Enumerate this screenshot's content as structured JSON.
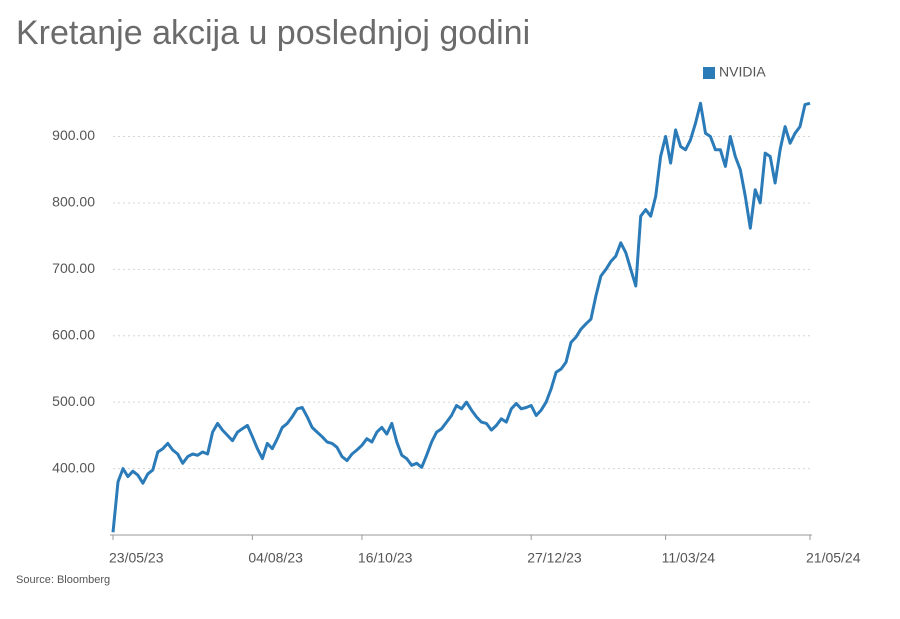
{
  "chart_data": {
    "type": "line",
    "title": "Kretanje akcija u poslednjoj godini",
    "source": "Source: Bloomberg",
    "categories": [
      "23/05/23",
      null,
      null,
      null,
      null,
      null,
      null,
      null,
      null,
      null,
      null,
      null,
      null,
      null,
      null,
      null,
      null,
      null,
      null,
      null,
      null,
      null,
      null,
      null,
      null,
      null,
      null,
      null,
      "04/08/23",
      null,
      null,
      null,
      null,
      null,
      null,
      null,
      null,
      null,
      null,
      null,
      null,
      null,
      null,
      null,
      null,
      null,
      null,
      null,
      null,
      null,
      "16/10/23",
      null,
      null,
      null,
      null,
      null,
      null,
      null,
      null,
      null,
      null,
      null,
      null,
      null,
      null,
      null,
      null,
      null,
      null,
      null,
      null,
      null,
      null,
      null,
      null,
      null,
      null,
      null,
      null,
      null,
      null,
      null,
      null,
      null,
      "27/12/23",
      null,
      null,
      null,
      null,
      null,
      null,
      null,
      null,
      null,
      null,
      null,
      null,
      null,
      null,
      null,
      null,
      null,
      null,
      null,
      null,
      null,
      null,
      null,
      null,
      null,
      null,
      "11/03/24",
      null,
      null,
      null,
      null,
      null,
      null,
      null,
      null,
      null,
      null,
      null,
      null,
      null,
      null,
      null,
      null,
      null,
      null,
      null,
      null,
      null,
      null,
      null,
      null,
      null,
      null,
      null,
      null,
      "21/05/24"
    ],
    "series": [
      {
        "name": "NVIDIA",
        "color": "#2b7bb9",
        "values": [
          304,
          380,
          400,
          388,
          396,
          390,
          378,
          392,
          398,
          425,
          430,
          438,
          428,
          422,
          408,
          418,
          422,
          420,
          425,
          422,
          455,
          468,
          458,
          450,
          442,
          455,
          460,
          465,
          448,
          430,
          415,
          438,
          430,
          445,
          462,
          468,
          478,
          490,
          492,
          478,
          462,
          455,
          448,
          440,
          438,
          432,
          418,
          412,
          422,
          428,
          435,
          445,
          440,
          455,
          462,
          452,
          468,
          440,
          420,
          415,
          405,
          408,
          402,
          420,
          440,
          455,
          460,
          470,
          480,
          495,
          490,
          500,
          488,
          478,
          470,
          468,
          458,
          465,
          475,
          470,
          490,
          498,
          490,
          492,
          495,
          480,
          488,
          500,
          520,
          545,
          550,
          560,
          590,
          598,
          610,
          618,
          625,
          660,
          690,
          700,
          712,
          720,
          740,
          725,
          700,
          675,
          780,
          790,
          780,
          810,
          870,
          900,
          860,
          910,
          885,
          880,
          895,
          920,
          950,
          905,
          900,
          880,
          880,
          855,
          900,
          870,
          850,
          810,
          762,
          820,
          800,
          875,
          870,
          830,
          880,
          915,
          890,
          905,
          915,
          948,
          950
        ]
      }
    ],
    "ylim": [
      300,
      955
    ],
    "yticks": [
      {
        "value": 400,
        "label": "400.00"
      },
      {
        "value": 500,
        "label": "500.00"
      },
      {
        "value": 600,
        "label": "600.00"
      },
      {
        "value": 700,
        "label": "700.00"
      },
      {
        "value": 800,
        "label": "800.00"
      },
      {
        "value": 900,
        "label": "900.00"
      }
    ],
    "grid": true,
    "legend": "top-right"
  }
}
